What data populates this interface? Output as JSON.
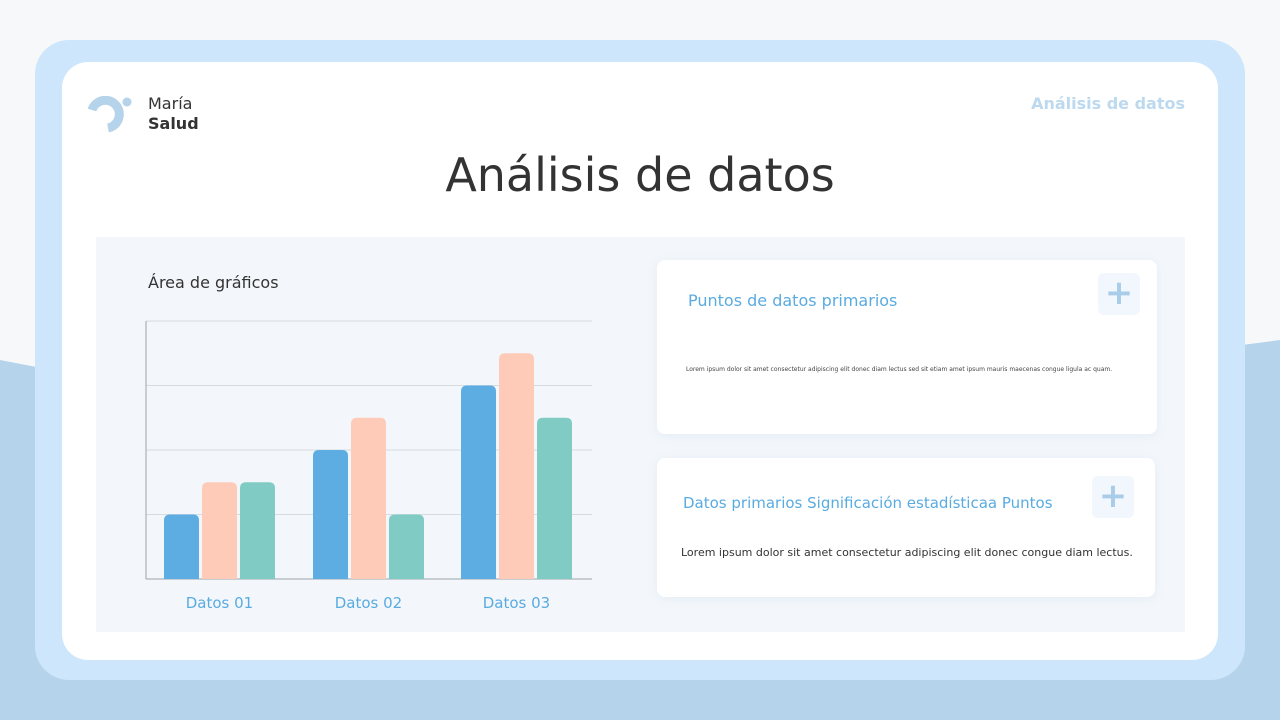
{
  "brand": {
    "line1": "María",
    "line2": "Salud"
  },
  "header": {
    "link": "Análisis de datos",
    "title": "Análisis de datos"
  },
  "colors": {
    "blue": "#5dade2",
    "peach": "#fdcbb8",
    "teal": "#80ccc4",
    "accent": "#5aabe0"
  },
  "chart_data": {
    "type": "bar",
    "title": "Área de gráficos",
    "categories": [
      "Datos 01",
      "Datos 02",
      "Datos 03"
    ],
    "series": [
      {
        "values": [
          1,
          2,
          3
        ],
        "color": "#5dade2"
      },
      {
        "values": [
          1.5,
          2.5,
          3.5
        ],
        "color": "#fdcbb8"
      },
      {
        "values": [
          1.5,
          1,
          2.5
        ],
        "color": "#80ccc4"
      }
    ],
    "ylim": [
      0,
      4
    ],
    "grid": true
  },
  "cards": [
    {
      "title": "Puntos de datos primarios",
      "body": "Lorem ipsum dolor sit amet consectetur adipiscing elit donec diam lectus sed sit etiam amet ipsum mauris maecenas congue ligula ac quam.",
      "icon": "plus-icon"
    },
    {
      "title": "Datos primarios Significación estadísticaa Puntos",
      "body": "Lorem ipsum dolor sit amet consectetur adipiscing elit donec congue diam lectus.",
      "icon": "plus-icon"
    }
  ]
}
